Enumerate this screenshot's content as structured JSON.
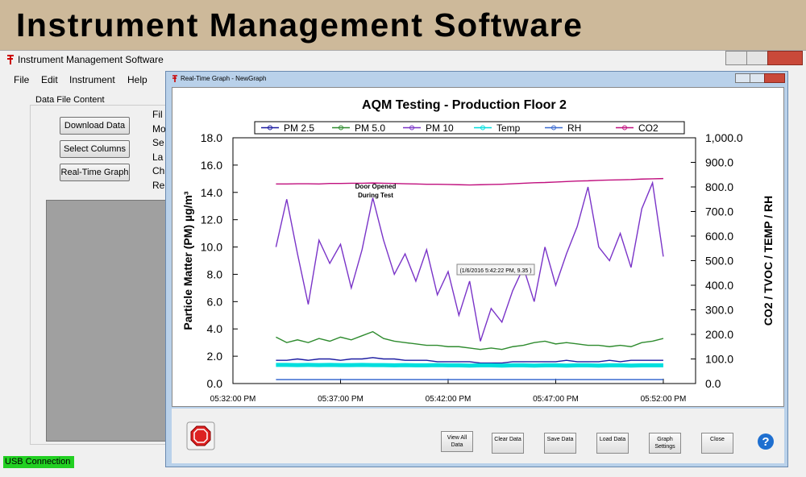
{
  "banner": "Instrument Management Software",
  "main_window": {
    "title": "Instrument Management Software",
    "menu": [
      "File",
      "Edit",
      "Instrument",
      "Help"
    ],
    "group_title": "Data File Content",
    "buttons": [
      "Download Data",
      "Select Columns",
      "Real-Time Graph"
    ],
    "hidden_labels": [
      "Fil",
      "Mo",
      "Se",
      "La",
      "Ch",
      "Re"
    ],
    "status": "USB Connection"
  },
  "graph_window": {
    "title": "Real-Time Graph - NewGraph",
    "buttons": [
      "View All Data",
      "Clear Data",
      "Save Data",
      "Load Data",
      "Graph Settings",
      "Close"
    ],
    "help": "?"
  },
  "chart_data": {
    "type": "line",
    "title": "AQM Testing - Production Floor 2",
    "y_label": "Particle Matter (PM) µg/m³",
    "y2_label": "CO2 / TVOC / TEMP / RH",
    "annotation": [
      "Door Opened",
      "During Test"
    ],
    "tooltip": "(1/6/2016 5:42:22 PM, 9.35 )",
    "legend": "top",
    "x": [
      "05:34:00 PM",
      "05:34:30 PM",
      "05:35:00 PM",
      "05:35:30 PM",
      "05:36:00 PM",
      "05:36:30 PM",
      "05:37:00 PM",
      "05:37:30 PM",
      "05:38:00 PM",
      "05:38:30 PM",
      "05:39:00 PM",
      "05:39:30 PM",
      "05:40:00 PM",
      "05:40:30 PM",
      "05:41:00 PM",
      "05:41:30 PM",
      "05:42:00 PM",
      "05:42:30 PM",
      "05:43:00 PM",
      "05:43:30 PM",
      "05:44:00 PM",
      "05:44:30 PM",
      "05:45:00 PM",
      "05:45:30 PM",
      "05:46:00 PM",
      "05:46:30 PM",
      "05:47:00 PM",
      "05:47:30 PM",
      "05:48:00 PM",
      "05:48:30 PM",
      "05:49:00 PM",
      "05:49:30 PM",
      "05:50:00 PM",
      "05:50:30 PM",
      "05:51:00 PM",
      "05:51:30 PM",
      "05:52:00 PM"
    ],
    "xlim": [
      "05:32:00 PM",
      "05:53:30 PM"
    ],
    "xticks": [
      "05:32:00 PM",
      "05:37:00 PM",
      "05:42:00 PM",
      "05:47:00 PM",
      "05:52:00 PM"
    ],
    "ylim": [
      0,
      18
    ],
    "yticks": [
      {
        "value": 0,
        "label": "0.0"
      },
      {
        "value": 2,
        "label": "2.0"
      },
      {
        "value": 4,
        "label": "4.0"
      },
      {
        "value": 6,
        "label": "6.0"
      },
      {
        "value": 8,
        "label": "8.0"
      },
      {
        "value": 10,
        "label": "10.0"
      },
      {
        "value": 12,
        "label": "12.0"
      },
      {
        "value": 14,
        "label": "14.0"
      },
      {
        "value": 16,
        "label": "16.0"
      },
      {
        "value": 18,
        "label": "18.0"
      }
    ],
    "y2lim": [
      0,
      1000
    ],
    "y2ticks": [
      {
        "value": 0,
        "label": "0.0"
      },
      {
        "value": 100,
        "label": "100.0"
      },
      {
        "value": 200,
        "label": "200.0"
      },
      {
        "value": 300,
        "label": "300.0"
      },
      {
        "value": 400,
        "label": "400.0"
      },
      {
        "value": 500,
        "label": "500.0"
      },
      {
        "value": 600,
        "label": "600.0"
      },
      {
        "value": 700,
        "label": "700.0"
      },
      {
        "value": 800,
        "label": "800.0"
      },
      {
        "value": 900,
        "label": "900.0"
      },
      {
        "value": 1000,
        "label": "1,000.0"
      }
    ],
    "series": [
      {
        "name": "PM 2.5",
        "color": "#1a1aa0",
        "values": [
          1.7,
          1.7,
          1.8,
          1.7,
          1.8,
          1.8,
          1.7,
          1.8,
          1.8,
          1.9,
          1.8,
          1.8,
          1.7,
          1.7,
          1.7,
          1.6,
          1.6,
          1.6,
          1.6,
          1.5,
          1.5,
          1.5,
          1.6,
          1.6,
          1.6,
          1.6,
          1.6,
          1.7,
          1.6,
          1.6,
          1.6,
          1.7,
          1.6,
          1.7,
          1.7,
          1.7,
          1.7
        ]
      },
      {
        "name": "PM 5.0",
        "color": "#2e8b2e",
        "values": [
          3.4,
          3.0,
          3.2,
          3.0,
          3.3,
          3.1,
          3.4,
          3.2,
          3.5,
          3.8,
          3.3,
          3.1,
          3.0,
          2.9,
          2.8,
          2.8,
          2.7,
          2.7,
          2.6,
          2.5,
          2.6,
          2.5,
          2.7,
          2.8,
          3.0,
          3.1,
          2.9,
          3.0,
          2.9,
          2.8,
          2.8,
          2.7,
          2.8,
          2.7,
          3.0,
          3.1,
          3.3
        ]
      },
      {
        "name": "PM 10",
        "color": "#7a34c8",
        "values": [
          10.0,
          13.5,
          9.5,
          5.8,
          10.5,
          8.8,
          10.2,
          7.0,
          9.8,
          13.6,
          10.5,
          8.0,
          9.5,
          7.5,
          9.8,
          6.5,
          8.2,
          5.0,
          7.5,
          3.1,
          5.5,
          4.5,
          6.8,
          8.5,
          6.0,
          10.0,
          7.2,
          9.5,
          11.5,
          14.4,
          10.0,
          9.0,
          11.0,
          8.5,
          12.8,
          14.7,
          9.3
        ]
      },
      {
        "name": "Temp",
        "color": "#00dede",
        "axis": "y2",
        "values": [
          76,
          76,
          75,
          76,
          75,
          76,
          75,
          75,
          76,
          75,
          75,
          74,
          75,
          74,
          74,
          75,
          74,
          74,
          73,
          74,
          74,
          73,
          74,
          74,
          73,
          74,
          74,
          73,
          74,
          74,
          73,
          74,
          74,
          73,
          74,
          74,
          74
        ]
      },
      {
        "name": "RH",
        "color": "#3a6ad0",
        "axis": "y2",
        "values": [
          16,
          16,
          16,
          16,
          16,
          16,
          16,
          16,
          16,
          16,
          16,
          16,
          16,
          16,
          16,
          16,
          16,
          16,
          16,
          16,
          16,
          16,
          16,
          16,
          16,
          16,
          16,
          16,
          16,
          16,
          16,
          16,
          16,
          16,
          16,
          16,
          16
        ]
      },
      {
        "name": "CO2",
        "color": "#c0107e",
        "axis": "y2",
        "values": [
          812,
          812,
          813,
          813,
          812,
          814,
          814,
          815,
          815,
          816,
          815,
          814,
          813,
          812,
          811,
          811,
          810,
          809,
          808,
          809,
          810,
          811,
          813,
          815,
          817,
          818,
          820,
          822,
          824,
          825,
          827,
          828,
          829,
          830,
          832,
          833,
          834
        ]
      }
    ]
  }
}
